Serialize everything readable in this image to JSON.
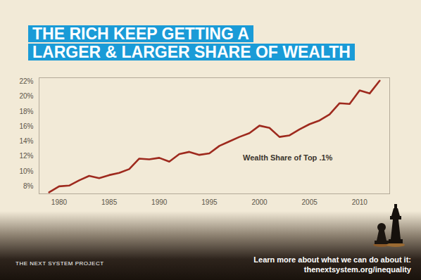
{
  "chart_data": {
    "type": "line",
    "title": [
      "THE RICH KEEP GETTING A",
      "LARGER & LARGER SHARE OF WEALTH"
    ],
    "x": [
      1979,
      1980,
      1981,
      1982,
      1983,
      1984,
      1985,
      1986,
      1987,
      1988,
      1989,
      1990,
      1991,
      1992,
      1993,
      1994,
      1995,
      1996,
      1997,
      1998,
      1999,
      2000,
      2001,
      2002,
      2003,
      2004,
      2005,
      2006,
      2007,
      2008,
      2009,
      2010,
      2011,
      2012
    ],
    "series": [
      {
        "name": "Wealth Share of Top .1%",
        "color": "#9e2a1e",
        "values": [
          7.2,
          8.0,
          8.1,
          8.8,
          9.4,
          9.1,
          9.5,
          9.8,
          10.3,
          11.7,
          11.6,
          11.8,
          11.3,
          12.3,
          12.6,
          12.2,
          12.4,
          13.4,
          14.0,
          14.6,
          15.1,
          16.1,
          15.8,
          14.6,
          14.8,
          15.6,
          16.3,
          16.8,
          17.6,
          19.1,
          19.0,
          20.8,
          20.4,
          22.1
        ]
      }
    ],
    "xlim": [
      1978,
      2013
    ],
    "xticks": [
      1980,
      1985,
      1990,
      1995,
      2000,
      2005,
      2010
    ],
    "ylim": [
      7,
      22.5
    ],
    "yticks": [
      {
        "value": 8,
        "label": "8%"
      },
      {
        "value": 10,
        "label": "10%"
      },
      {
        "value": 12,
        "label": "12%"
      },
      {
        "value": 14,
        "label": "14%"
      },
      {
        "value": 16,
        "label": "16%"
      },
      {
        "value": 18,
        "label": "18%"
      },
      {
        "value": 20,
        "label": "20%"
      },
      {
        "value": 22,
        "label": "22%"
      }
    ],
    "grid": false,
    "footer": {
      "logo": "THE NEXT SYSTEM PROJECT",
      "lines": [
        "Learn more about what we can do about it:",
        "thenextsystem.org/inequality"
      ]
    }
  }
}
